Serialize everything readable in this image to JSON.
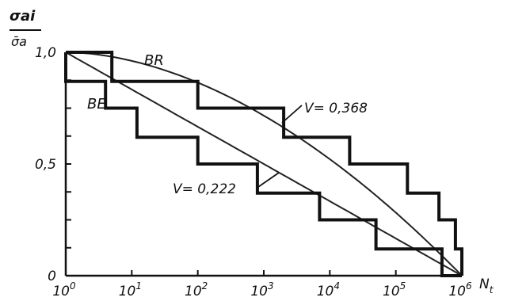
{
  "chart_data": {
    "type": "line",
    "ylabel_top": "σai",
    "ylabel_bottom": "σ̄a",
    "xlabel_main": "N",
    "xlabel_sub": "t",
    "xscale": "log",
    "xlim": [
      1,
      1000000
    ],
    "ylim": [
      0,
      1.0
    ],
    "x_ticks": [
      {
        "exp": 0,
        "label": "10",
        "sup": "0"
      },
      {
        "exp": 1,
        "label": "10",
        "sup": "1"
      },
      {
        "exp": 2,
        "label": "10",
        "sup": "2"
      },
      {
        "exp": 3,
        "label": "10",
        "sup": "3"
      },
      {
        "exp": 4,
        "label": "10",
        "sup": "4"
      },
      {
        "exp": 5,
        "label": "10",
        "sup": "5"
      },
      {
        "exp": 6,
        "label": "10",
        "sup": "6"
      }
    ],
    "y_ticks": [
      {
        "value": 0,
        "label": "0"
      },
      {
        "value": 0.5,
        "label": "0,5"
      },
      {
        "value": 1.0,
        "label": "1,0"
      }
    ],
    "series": [
      {
        "name": "BR",
        "curve_exponent": 0.55,
        "steps": [
          {
            "x0": 1,
            "x1": 5,
            "y": 1.0
          },
          {
            "x0": 5,
            "x1": 100,
            "y": 0.87
          },
          {
            "x0": 100,
            "x1": 2000,
            "y": 0.75
          },
          {
            "x0": 2000,
            "x1": 20000,
            "y": 0.62
          },
          {
            "x0": 20000,
            "x1": 150000,
            "y": 0.5
          },
          {
            "x0": 150000,
            "x1": 450000,
            "y": 0.37
          },
          {
            "x0": 450000,
            "x1": 800000,
            "y": 0.25
          },
          {
            "x0": 800000,
            "x1": 1000000,
            "y": 0.12
          }
        ]
      },
      {
        "name": "BE",
        "curve_exponent": 1.0,
        "steps": [
          {
            "x0": 1,
            "x1": 4,
            "y": 0.87
          },
          {
            "x0": 4,
            "x1": 12,
            "y": 0.75
          },
          {
            "x0": 12,
            "x1": 100,
            "y": 0.62
          },
          {
            "x0": 100,
            "x1": 800,
            "y": 0.5
          },
          {
            "x0": 800,
            "x1": 7000,
            "y": 0.37
          },
          {
            "x0": 7000,
            "x1": 50000,
            "y": 0.25
          },
          {
            "x0": 50000,
            "x1": 500000,
            "y": 0.12
          },
          {
            "x0": 500000,
            "x1": 1000000,
            "y": 0.0
          }
        ]
      }
    ],
    "annotations": [
      {
        "text": "V= 0,368"
      },
      {
        "text": "V= 0,222"
      }
    ],
    "grid": false
  }
}
